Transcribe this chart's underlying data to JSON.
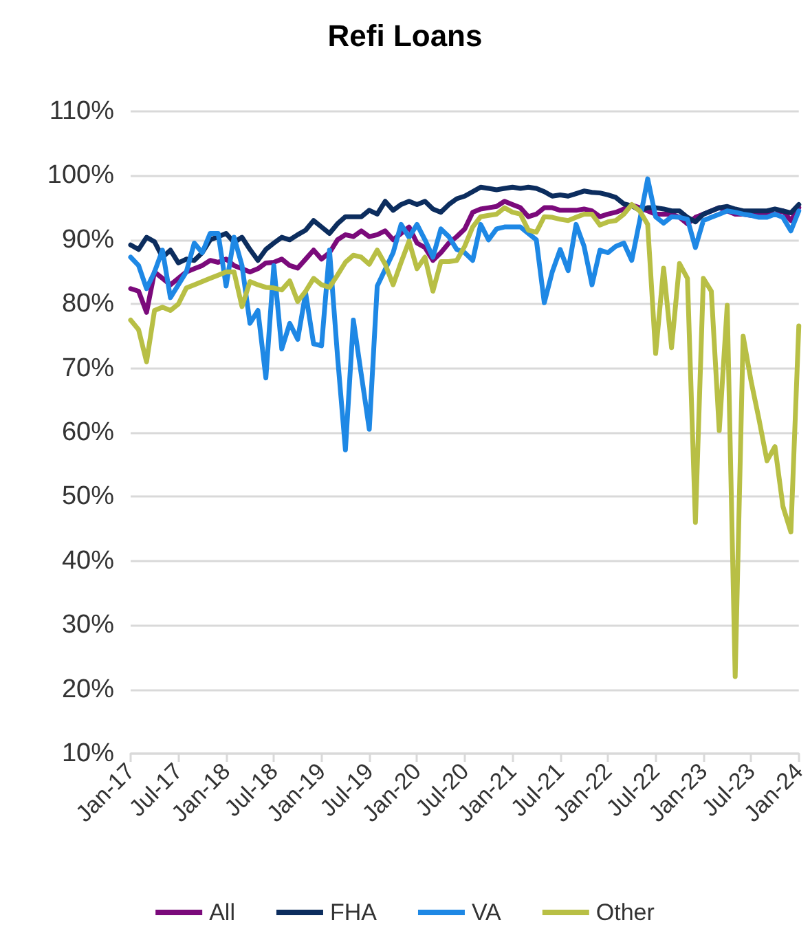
{
  "chart_data": {
    "type": "line",
    "title": "Refi Loans",
    "categories": [
      "Jan-17",
      null,
      null,
      null,
      null,
      null,
      "Jul-17",
      null,
      null,
      null,
      null,
      null,
      "Jan-18",
      null,
      null,
      null,
      null,
      null,
      "Jul-18",
      null,
      null,
      null,
      null,
      null,
      "Jan-19",
      null,
      null,
      null,
      null,
      null,
      "Jul-19",
      null,
      null,
      null,
      null,
      null,
      "Jan-20",
      null,
      null,
      null,
      null,
      null,
      "Jul-20",
      null,
      null,
      null,
      null,
      null,
      "Jan-21",
      null,
      null,
      null,
      null,
      null,
      "Jul-21",
      null,
      null,
      null,
      null,
      null,
      "Jan-22",
      null,
      null,
      null,
      null,
      null,
      "Jul-22",
      null,
      null,
      null,
      null,
      null,
      "Jan-23",
      null,
      null,
      null,
      null,
      null,
      "Jul-23",
      null,
      null,
      null,
      null,
      null,
      "Jan-24"
    ],
    "series": [
      {
        "name": "All",
        "color": "#7b0a7b",
        "values": [
          82.4,
          82,
          78.7,
          85,
          84,
          83,
          84,
          85,
          85.5,
          86,
          86.8,
          86.5,
          87,
          86,
          85.5,
          85,
          85.5,
          86.4,
          86.5,
          87,
          86,
          85.6,
          87,
          88.4,
          87,
          88,
          90,
          90.8,
          90.5,
          91.4,
          90.5,
          90.8,
          91.4,
          90,
          91,
          92,
          89.5,
          88.8,
          86.8,
          88,
          89.5,
          90.5,
          91.7,
          94.3,
          94.8,
          95,
          95.2,
          96,
          95.5,
          95,
          93.6,
          94,
          95,
          95,
          94.6,
          94.6,
          94.6,
          94.8,
          94.5,
          93.6,
          94,
          94.3,
          94.8,
          95.4,
          95,
          94.5,
          94,
          94,
          94,
          93.5,
          92.5,
          93.5,
          94,
          94.5,
          95,
          94.5,
          94,
          94,
          93.8,
          94,
          94.2,
          94,
          94.5,
          93,
          95
        ]
      },
      {
        "name": "FHA",
        "color": "#0c2d5e",
        "values": [
          89.2,
          88.5,
          90.4,
          89.7,
          87.3,
          88.4,
          86.4,
          87,
          86.8,
          88,
          90,
          90.5,
          91,
          89.6,
          90.4,
          88.5,
          86.8,
          88.5,
          89.5,
          90.4,
          90,
          90.8,
          91.5,
          93,
          92,
          91,
          92.5,
          93.6,
          93.6,
          93.6,
          94.6,
          94,
          96,
          94.6,
          95.5,
          96,
          95.5,
          96,
          94.8,
          94.3,
          95.5,
          96.4,
          96.8,
          97.5,
          98.2,
          98,
          97.8,
          98,
          98.2,
          98,
          98.2,
          98,
          97.5,
          96.8,
          97,
          96.8,
          97.2,
          97.6,
          97.4,
          97.3,
          97,
          96.6,
          95.6,
          95.3,
          94.6,
          95,
          95,
          94.8,
          94.5,
          94.5,
          93.5,
          92.8,
          94,
          94.5,
          95,
          95.2,
          94.8,
          94.5,
          94.5,
          94.5,
          94.5,
          94.8,
          94.5,
          94.2,
          95.5
        ]
      },
      {
        "name": "VA",
        "color": "#1e88e5",
        "values": [
          87.3,
          86,
          82.4,
          85,
          88.4,
          81,
          83,
          85,
          89.5,
          88,
          91,
          91,
          82.8,
          90.4,
          86,
          77,
          79,
          68.5,
          86,
          73,
          77,
          74.5,
          81.7,
          73.8,
          73.5,
          88.4,
          72,
          57.3,
          77.5,
          69,
          60.5,
          82.8,
          85.4,
          88,
          92.4,
          90.4,
          92.4,
          90,
          87.3,
          91.7,
          90.5,
          88.5,
          88,
          86.8,
          92.4,
          90,
          91.7,
          92,
          92,
          92,
          91,
          90,
          80.2,
          85,
          88.5,
          85.2,
          92.4,
          89,
          83,
          88.4,
          88,
          89,
          89.5,
          86.8,
          93,
          99.5,
          93.6,
          92.6,
          93.6,
          93.5,
          93.2,
          88.8,
          93,
          93.5,
          94,
          94.5,
          94.3,
          94,
          93.8,
          93.5,
          93.5,
          94,
          93.5,
          91.4,
          94.5
        ]
      },
      {
        "name": "Other",
        "color": "#b8bf45",
        "values": [
          77.5,
          76,
          71,
          79,
          79.5,
          79,
          80,
          82.5,
          83,
          83.5,
          84,
          84.5,
          85,
          85,
          79.6,
          83.5,
          83,
          82.6,
          82.5,
          82.2,
          83.6,
          80.4,
          82,
          84,
          83,
          82.6,
          84.5,
          86.5,
          87.6,
          87.3,
          86.2,
          88.4,
          86.2,
          83,
          86.5,
          89.8,
          85.5,
          87.3,
          82,
          86.6,
          86.6,
          86.8,
          89,
          92,
          93.6,
          93.8,
          94,
          95,
          94.3,
          94,
          91.5,
          91.2,
          93.6,
          93.5,
          93.2,
          93,
          93.5,
          94,
          94,
          92.3,
          92.8,
          93,
          94,
          95.5,
          94.5,
          92.4,
          72.3,
          85.6,
          73.2,
          86.3,
          84,
          46,
          84,
          82,
          60.3,
          79.8,
          22,
          75,
          68,
          62,
          55.6,
          57.8,
          48.5,
          44.5,
          76.6
        ]
      }
    ],
    "ylim": [
      10,
      110
    ],
    "yticks": [
      {
        "value": 10,
        "label": "10%"
      },
      {
        "value": 20,
        "label": "20%"
      },
      {
        "value": 30,
        "label": "30%"
      },
      {
        "value": 40,
        "label": "40%"
      },
      {
        "value": 50,
        "label": "50%"
      },
      {
        "value": 60,
        "label": "60%"
      },
      {
        "value": 70,
        "label": "70%"
      },
      {
        "value": 80,
        "label": "80%"
      },
      {
        "value": 90,
        "label": "90%"
      },
      {
        "value": 100,
        "label": "100%"
      },
      {
        "value": 110,
        "label": "110%"
      }
    ],
    "grid": "y",
    "legend": "bottom",
    "marker": "none",
    "line_style": "solid"
  }
}
